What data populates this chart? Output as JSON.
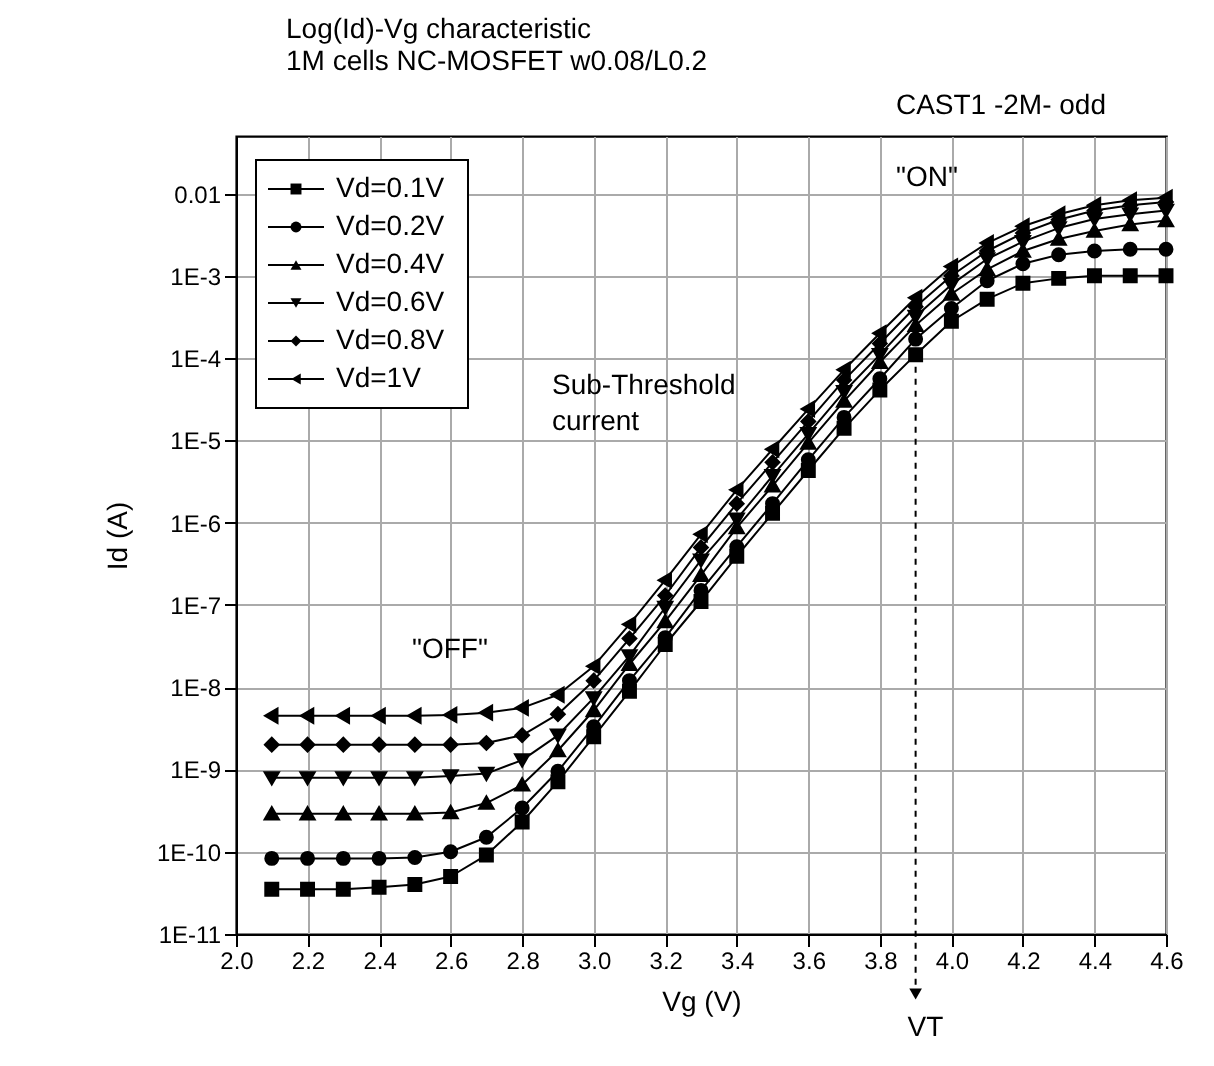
{
  "chart_data": {
    "type": "line",
    "title": "Log(Id)-Vg characteristic",
    "subtitle": "1M cells NC-MOSFET w0.08/L0.2",
    "xlabel": "Vg (V)",
    "ylabel": "Id (A)",
    "x": [
      2.1,
      2.2,
      2.3,
      2.4,
      2.5,
      2.6,
      2.7,
      2.8,
      2.9,
      3.0,
      3.1,
      3.2,
      3.3,
      3.4,
      3.5,
      3.6,
      3.7,
      3.8,
      3.9,
      4.0,
      4.1,
      4.2,
      4.3,
      4.4,
      4.5,
      4.6
    ],
    "series": [
      {
        "name": "Vd=0.1V",
        "color": "#000000",
        "marker": "square",
        "values": [
          3.5e-11,
          3.5e-11,
          3.5e-11,
          3.7e-11,
          4e-11,
          5e-11,
          9.1e-11,
          2.3e-10,
          7.1e-10,
          2.5e-09,
          8.9e-09,
          3.3e-08,
          1.1e-07,
          3.9e-07,
          1.3e-06,
          4.3e-06,
          1.4e-05,
          4.1e-05,
          0.00011,
          0.00028,
          0.00052,
          0.00081,
          0.00093,
          0.001,
          0.001,
          0.001
        ]
      },
      {
        "name": "Vd=0.2V",
        "color": "#000000",
        "marker": "circle",
        "values": [
          8.3e-11,
          8.3e-11,
          8.3e-11,
          8.3e-11,
          8.5e-11,
          1e-10,
          1.5e-10,
          3.4e-10,
          9.5e-10,
          3.3e-09,
          1.2e-08,
          4e-08,
          1.5e-07,
          5.1e-07,
          1.7e-06,
          5.8e-06,
          1.9e-05,
          5.6e-05,
          0.00017,
          0.0004,
          0.00087,
          0.0014,
          0.0018,
          0.002,
          0.0021,
          0.0021
        ]
      },
      {
        "name": "Vd=0.4V",
        "color": "#000000",
        "marker": "triangle",
        "values": [
          2.9e-10,
          2.9e-10,
          2.9e-10,
          2.9e-10,
          2.9e-10,
          3e-10,
          3.9e-10,
          6.5e-10,
          1.7e-09,
          5.2e-09,
          1.9e-08,
          6.3e-08,
          2.3e-07,
          8.7e-07,
          2.8e-06,
          9.3e-06,
          3e-05,
          8.9e-05,
          0.00025,
          0.0006,
          0.0012,
          0.002,
          0.0028,
          0.0035,
          0.0042,
          0.0047
        ]
      },
      {
        "name": "Vd=0.6V",
        "color": "#000000",
        "marker": "triangle-down",
        "values": [
          7.9e-10,
          7.9e-10,
          7.9e-10,
          7.9e-10,
          7.9e-10,
          8.3e-10,
          8.9e-10,
          1.3e-09,
          2.6e-09,
          7.4e-09,
          2.4e-08,
          9.3e-08,
          3.5e-07,
          1.1e-06,
          3.7e-06,
          1.2e-05,
          3.9e-05,
          0.00011,
          0.00032,
          0.00078,
          0.0016,
          0.0026,
          0.0038,
          0.0049,
          0.0056,
          0.0062
        ]
      },
      {
        "name": "Vd=0.8V",
        "color": "#000000",
        "marker": "diamond",
        "values": [
          2e-09,
          2e-09,
          2e-09,
          2e-09,
          2e-09,
          2e-09,
          2.1e-09,
          2.6e-09,
          4.7e-09,
          1.2e-08,
          3.9e-08,
          1.3e-07,
          5e-07,
          1.7e-06,
          5.4e-06,
          1.7e-05,
          5.4e-05,
          0.00015,
          0.00042,
          0.001,
          0.002,
          0.0033,
          0.0048,
          0.0062,
          0.0072,
          0.0079
        ]
      },
      {
        "name": "Vd=1V",
        "color": "#000000",
        "marker": "triangle-left",
        "values": [
          4.5e-09,
          4.5e-09,
          4.5e-09,
          4.5e-09,
          4.5e-09,
          4.6e-09,
          4.9e-09,
          5.6e-09,
          8.1e-09,
          1.8e-08,
          5.8e-08,
          2e-07,
          7.2e-07,
          2.5e-06,
          7.8e-06,
          2.4e-05,
          7.2e-05,
          0.0002,
          0.00054,
          0.0013,
          0.0025,
          0.004,
          0.0056,
          0.0072,
          0.0083,
          0.0089
        ]
      }
    ],
    "log": "y",
    "xlim": [
      2.0,
      4.6
    ],
    "ylim": [
      1e-11,
      0.05
    ],
    "xticks": [
      {
        "value": 2.0,
        "label": "2.0"
      },
      2.2,
      2.4,
      2.6,
      2.8,
      {
        "value": 3.0,
        "label": "3.0"
      },
      3.2,
      3.4,
      3.6,
      3.8,
      {
        "value": 4.0,
        "label": "4.0"
      },
      4.2,
      4.4,
      4.6
    ],
    "yticks": [
      {
        "value": 1e-11,
        "label": "1E-11"
      },
      {
        "value": 1e-10,
        "label": "1E-10"
      },
      {
        "value": 1e-09,
        "label": "1E-9"
      },
      {
        "value": 1e-08,
        "label": "1E-8"
      },
      {
        "value": 1e-07,
        "label": "1E-7"
      },
      {
        "value": 1e-06,
        "label": "1E-6"
      },
      {
        "value": 1e-05,
        "label": "1E-5"
      },
      {
        "value": 0.0001,
        "label": "1E-4"
      },
      {
        "value": 0.001,
        "label": "1E-3"
      },
      0.01
    ],
    "grid": true,
    "legend": "top left",
    "line_style": "solid",
    "annotations": [
      "CAST1 -2M- odd",
      "\"ON\"",
      "Sub-Threshold\ncurrent",
      "\"OFF\"",
      {
        "text": "VT",
        "x": 3.9,
        "y": 0.00011
      }
    ]
  }
}
